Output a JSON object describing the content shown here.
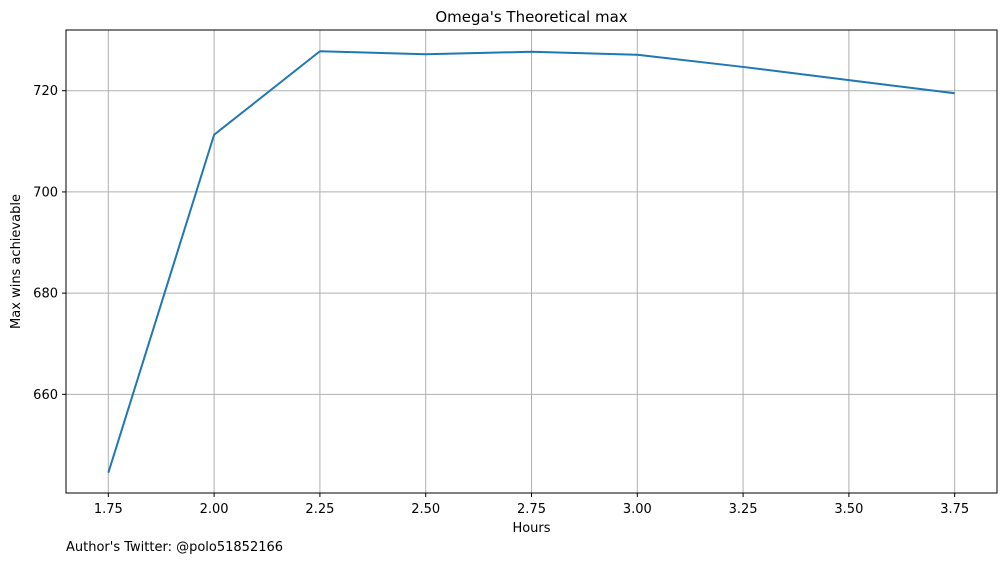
{
  "footnote": "Author's Twitter: @polo51852166",
  "chart_data": {
    "type": "line",
    "title": "Omega's Theoretical max",
    "xlabel": "Hours",
    "ylabel": "Max wins achievable",
    "x": [
      1.75,
      2.0,
      2.25,
      2.5,
      2.75,
      3.0,
      3.25,
      3.5,
      3.75
    ],
    "series": [
      {
        "values": [
          644.5,
          711.3,
          727.8,
          727.2,
          727.7,
          727.1,
          724.7,
          722.1,
          719.5
        ],
        "color": "#1f77b4"
      }
    ],
    "xticks": [
      1.75,
      2.0,
      2.25,
      2.5,
      2.75,
      3.0,
      3.25,
      3.5,
      3.75
    ],
    "xtick_labels": [
      "1.75",
      "2.00",
      "2.25",
      "2.50",
      "2.75",
      "3.00",
      "3.25",
      "3.50",
      "3.75"
    ],
    "yticks": [
      660,
      680,
      700,
      720
    ],
    "ytick_labels": [
      "660",
      "680",
      "700",
      "720"
    ],
    "xlim": [
      1.65,
      3.85
    ],
    "ylim": [
      640.5,
      732
    ],
    "grid": true,
    "grid_color": "#b0b0b0"
  }
}
